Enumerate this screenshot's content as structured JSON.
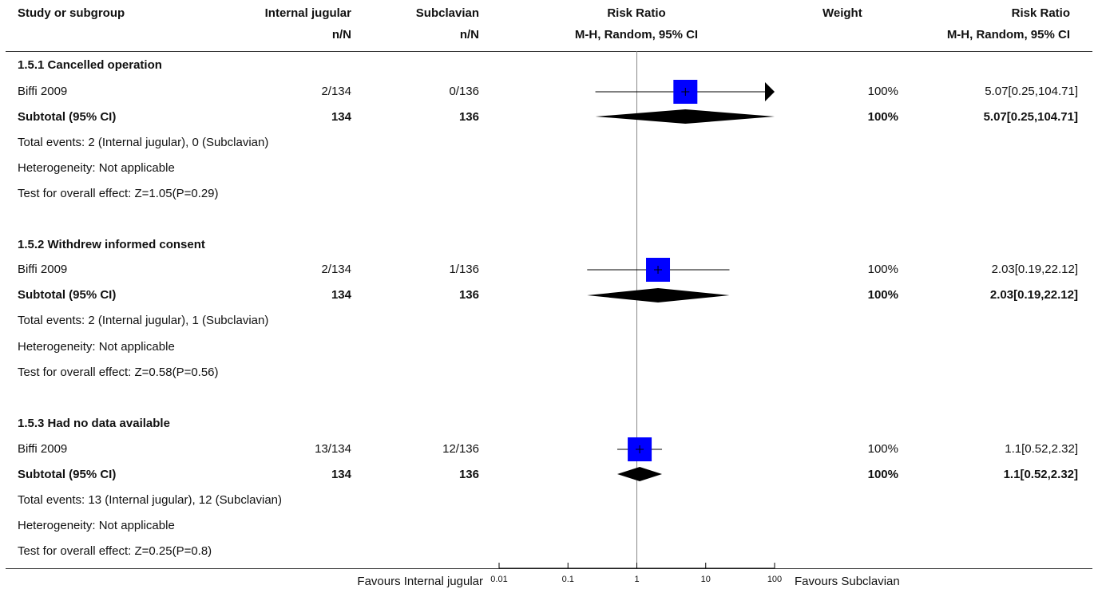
{
  "header": {
    "study_col": "Study or subgroup",
    "group1": "Internal jugular",
    "group1_sub": "n/N",
    "group2": "Subclavian",
    "group2_sub": "n/N",
    "effect": "Risk Ratio",
    "effect_sub": "M-H, Random, 95% CI",
    "weight": "Weight",
    "effect2": "Risk Ratio",
    "effect2_sub": "M-H, Random, 95% CI"
  },
  "subgroups": [
    {
      "title": "1.5.1 Cancelled operation",
      "study": {
        "name": "Biffi 2009",
        "g1": "2/134",
        "g2": "0/136",
        "weight": "100%",
        "ci_text": "5.07[0.25,104.71]"
      },
      "subtotal": {
        "label": "Subtotal (95% CI)",
        "g1": "134",
        "g2": "136",
        "weight": "100%",
        "ci_text": "5.07[0.25,104.71]"
      },
      "notes": [
        "Total events: 2 (Internal jugular), 0 (Subclavian)",
        "Heterogeneity: Not applicable",
        "Test for overall effect: Z=1.05(P=0.29)"
      ]
    },
    {
      "title": "1.5.2 Withdrew informed consent",
      "study": {
        "name": "Biffi 2009",
        "g1": "2/134",
        "g2": "1/136",
        "weight": "100%",
        "ci_text": "2.03[0.19,22.12]"
      },
      "subtotal": {
        "label": "Subtotal (95% CI)",
        "g1": "134",
        "g2": "136",
        "weight": "100%",
        "ci_text": "2.03[0.19,22.12]"
      },
      "notes": [
        "Total events: 2 (Internal jugular), 1 (Subclavian)",
        "Heterogeneity: Not applicable",
        "Test for overall effect: Z=0.58(P=0.56)"
      ]
    },
    {
      "title": "1.5.3 Had no data available",
      "study": {
        "name": "Biffi 2009",
        "g1": "13/134",
        "g2": "12/136",
        "weight": "100%",
        "ci_text": "1.1[0.52,2.32]"
      },
      "subtotal": {
        "label": "Subtotal (95% CI)",
        "g1": "134",
        "g2": "136",
        "weight": "100%",
        "ci_text": "1.1[0.52,2.32]"
      },
      "notes": [
        "Total events: 13 (Internal jugular), 12 (Subclavian)",
        "Heterogeneity: Not applicable",
        "Test for overall effect: Z=0.25(P=0.8)"
      ]
    }
  ],
  "footer": {
    "left": "Favours Internal jugular",
    "right": "Favours Subclavian"
  },
  "colors": {
    "study_square": "#0000ff",
    "diamond": "#000000"
  },
  "chart_data": {
    "type": "forest",
    "scale": "log",
    "xlim": [
      0.01,
      100
    ],
    "ticks": [
      0.01,
      0.1,
      1,
      10,
      100
    ],
    "tick_labels": [
      "0.01",
      "0.1",
      "1",
      "10",
      "100"
    ],
    "reference_line": 1,
    "studies": [
      {
        "est": 5.07,
        "lo": 0.25,
        "hi": 104.71,
        "arrow_right": true
      },
      {
        "est": 2.03,
        "lo": 0.19,
        "hi": 22.12,
        "arrow_right": false
      },
      {
        "est": 1.1,
        "lo": 0.52,
        "hi": 2.32,
        "arrow_right": false
      }
    ],
    "subtotals": [
      {
        "est": 5.07,
        "lo": 0.25,
        "hi": 104.71
      },
      {
        "est": 2.03,
        "lo": 0.19,
        "hi": 22.12
      },
      {
        "est": 1.1,
        "lo": 0.52,
        "hi": 2.32
      }
    ]
  }
}
